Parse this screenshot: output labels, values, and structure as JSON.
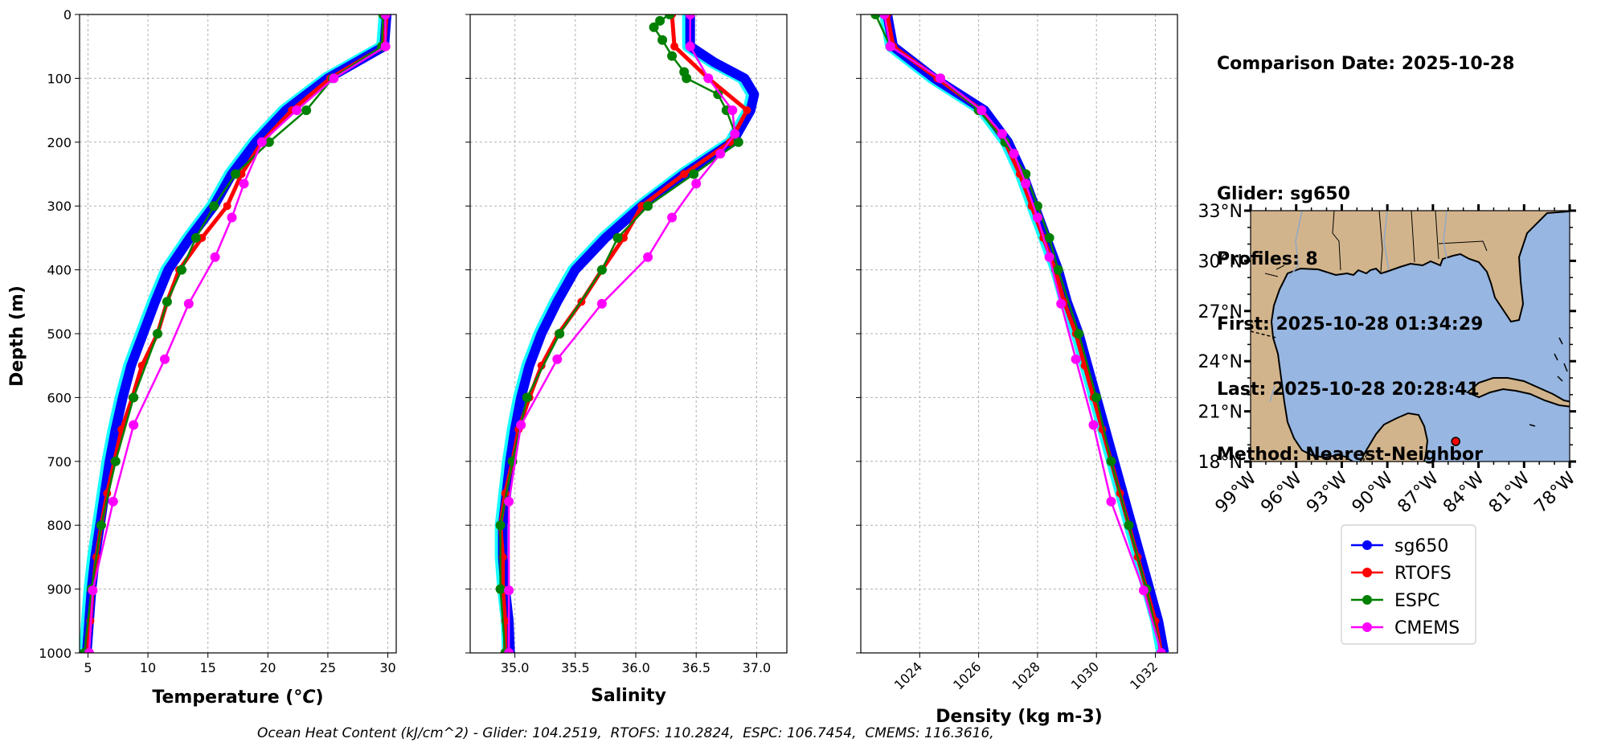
{
  "info": {
    "comparison_date": "Comparison Date: 2025-10-28",
    "glider": "Glider: sg650",
    "profiles": "Profiles: 8",
    "first": "First: 2025-10-28 01:34:29",
    "last": "Last: 2025-10-28 20:28:41",
    "method": "Method: Nearest-Neighbor"
  },
  "footer": "Ocean Heat Content (kJ/cm^2) - Glider: 104.2519,  RTOFS: 110.2824,  ESPC: 106.7454,  CMEMS: 116.3616,",
  "colors": {
    "sg650": "#0000ff",
    "sg650_spread": "#00ffff",
    "RTOFS": "#ff0000",
    "ESPC": "#008000",
    "CMEMS": "#ff00ff",
    "land": "#d2b48c",
    "ocean": "#97b6e1",
    "grid": "#b0b0b0"
  },
  "chart_data": [
    {
      "type": "line",
      "xlabel": "Temperature (°C)",
      "ylabel": "Depth (m)",
      "xlim": [
        4.3,
        30.7
      ],
      "ylim": [
        1000,
        0
      ],
      "x_ticks": [
        5,
        10,
        15,
        20,
        25,
        30
      ],
      "y_ticks": [
        0,
        100,
        200,
        300,
        400,
        500,
        600,
        700,
        800,
        900,
        1000
      ],
      "grid": true,
      "series": [
        {
          "name": "sg650",
          "depth": [
            0,
            50,
            100,
            150,
            200,
            250,
            300,
            350,
            400,
            450,
            500,
            550,
            600,
            650,
            700,
            750,
            800,
            850,
            900,
            950,
            1000
          ],
          "values": [
            29.9,
            29.7,
            25.0,
            21.5,
            19.0,
            17.0,
            15.5,
            13.5,
            11.7,
            10.6,
            9.6,
            8.6,
            7.9,
            7.3,
            6.8,
            6.4,
            6.0,
            5.6,
            5.3,
            5.1,
            4.9
          ]
        },
        {
          "name": "RTOFS",
          "depth": [
            0,
            50,
            100,
            150,
            200,
            250,
            300,
            350,
            400,
            450,
            500,
            550,
            600,
            650,
            700,
            750,
            800,
            850,
            900,
            950,
            1000
          ],
          "values": [
            29.9,
            29.7,
            25.2,
            22.0,
            19.5,
            17.8,
            16.6,
            14.5,
            12.6,
            11.6,
            10.8,
            9.5,
            8.7,
            7.8,
            7.2,
            6.6,
            6.1,
            5.7,
            5.4,
            5.2,
            5.0
          ]
        },
        {
          "name": "ESPC",
          "depth": [
            0,
            50,
            100,
            150,
            200,
            250,
            300,
            350,
            400,
            450,
            500,
            600,
            700,
            800,
            900,
            1000
          ],
          "values": [
            29.6,
            29.5,
            25.4,
            23.2,
            20.1,
            17.3,
            15.5,
            14.0,
            12.8,
            11.6,
            10.8,
            8.8,
            7.3,
            6.1,
            5.3,
            4.7
          ]
        },
        {
          "name": "CMEMS",
          "depth": [
            0,
            50,
            100,
            150,
            200,
            265,
            318,
            380,
            453,
            540,
            643,
            763,
            902,
            1000
          ],
          "values": [
            29.8,
            29.8,
            25.5,
            22.4,
            19.5,
            18.0,
            17.0,
            15.6,
            13.4,
            11.4,
            8.8,
            7.1,
            5.4,
            5.1
          ]
        }
      ]
    },
    {
      "type": "line",
      "xlabel": "Salinity",
      "ylabel": "",
      "xlim": [
        34.63,
        37.25
      ],
      "ylim": [
        1000,
        0
      ],
      "x_ticks": [
        35.0,
        35.5,
        36.0,
        36.5,
        37.0
      ],
      "grid": true,
      "series": [
        {
          "name": "sg650",
          "depth": [
            0,
            50,
            75,
            100,
            125,
            150,
            200,
            250,
            300,
            350,
            400,
            450,
            500,
            550,
            600,
            650,
            700,
            750,
            800,
            850,
            900,
            950,
            1000
          ],
          "values": [
            36.45,
            36.45,
            36.65,
            36.9,
            36.98,
            36.95,
            36.8,
            36.4,
            36.05,
            35.75,
            35.5,
            35.35,
            35.22,
            35.12,
            35.05,
            35.0,
            34.96,
            34.93,
            34.9,
            34.9,
            34.92,
            34.95,
            34.96
          ]
        },
        {
          "name": "RTOFS",
          "depth": [
            0,
            50,
            100,
            150,
            200,
            250,
            300,
            350,
            400,
            450,
            500,
            550,
            600,
            650,
            700,
            750,
            800,
            850,
            900,
            950,
            1000
          ],
          "values": [
            36.3,
            36.32,
            36.6,
            36.92,
            36.78,
            36.4,
            36.05,
            35.9,
            35.72,
            35.55,
            35.36,
            35.22,
            35.12,
            35.03,
            34.98,
            34.92,
            34.88,
            34.9,
            34.9,
            34.92,
            34.92
          ]
        },
        {
          "name": "ESPC",
          "depth": [
            0,
            10,
            20,
            40,
            65,
            90,
            100,
            125,
            150,
            200,
            250,
            300,
            350,
            400,
            500,
            600,
            700,
            800,
            900,
            1000
          ],
          "values": [
            36.28,
            36.2,
            36.15,
            36.22,
            36.3,
            36.4,
            36.42,
            36.68,
            36.75,
            36.85,
            36.48,
            36.1,
            35.85,
            35.72,
            35.37,
            35.1,
            34.98,
            34.88,
            34.88,
            34.92
          ]
        },
        {
          "name": "CMEMS",
          "depth": [
            0,
            50,
            100,
            150,
            187,
            218,
            265,
            318,
            380,
            453,
            540,
            643,
            763,
            902,
            1000
          ],
          "values": [
            36.45,
            36.45,
            36.6,
            36.8,
            36.82,
            36.7,
            36.5,
            36.3,
            36.1,
            35.72,
            35.35,
            35.05,
            34.95,
            34.95,
            34.95
          ]
        }
      ]
    },
    {
      "type": "line",
      "xlabel": "Density (kg m-3)",
      "ylabel": "",
      "xlim": [
        1022.0,
        1032.75
      ],
      "ylim": [
        1000,
        0
      ],
      "x_ticks": [
        1024,
        1026,
        1028,
        1030,
        1032
      ],
      "grid": true,
      "series": [
        {
          "name": "sg650",
          "depth": [
            0,
            50,
            100,
            150,
            200,
            250,
            300,
            350,
            400,
            450,
            500,
            550,
            600,
            650,
            700,
            750,
            800,
            850,
            900,
            950,
            1000
          ],
          "values": [
            1022.9,
            1023.1,
            1024.5,
            1026.2,
            1027.0,
            1027.5,
            1027.9,
            1028.3,
            1028.7,
            1029.0,
            1029.4,
            1029.7,
            1030.0,
            1030.3,
            1030.6,
            1030.9,
            1031.2,
            1031.5,
            1031.8,
            1032.1,
            1032.3
          ]
        },
        {
          "name": "RTOFS",
          "depth": [
            0,
            50,
            100,
            150,
            200,
            250,
            300,
            350,
            400,
            450,
            500,
            550,
            600,
            650,
            700,
            750,
            800,
            850,
            900,
            950,
            1000
          ],
          "values": [
            1022.9,
            1023.1,
            1024.6,
            1026.1,
            1026.9,
            1027.4,
            1027.8,
            1028.2,
            1028.6,
            1028.9,
            1029.3,
            1029.6,
            1029.9,
            1030.2,
            1030.5,
            1030.8,
            1031.1,
            1031.4,
            1031.7,
            1032.0,
            1032.2
          ]
        },
        {
          "name": "ESPC",
          "depth": [
            0,
            50,
            100,
            150,
            200,
            250,
            300,
            350,
            400,
            500,
            600,
            700,
            800,
            900,
            1000
          ],
          "values": [
            1022.5,
            1023.0,
            1024.7,
            1026.0,
            1026.9,
            1027.6,
            1028.0,
            1028.4,
            1028.7,
            1029.4,
            1030.0,
            1030.5,
            1031.1,
            1031.7,
            1032.2
          ]
        },
        {
          "name": "CMEMS",
          "depth": [
            0,
            50,
            100,
            150,
            187,
            218,
            265,
            318,
            380,
            453,
            540,
            643,
            763,
            902,
            1000
          ],
          "values": [
            1022.8,
            1023.0,
            1024.7,
            1026.1,
            1026.8,
            1027.2,
            1027.6,
            1028.0,
            1028.4,
            1028.8,
            1029.3,
            1029.9,
            1030.5,
            1031.6,
            1032.2
          ]
        }
      ]
    },
    {
      "type": "map",
      "lon_range": [
        -99,
        -78
      ],
      "lat_range": [
        18,
        33
      ],
      "x_tick_labels": [
        "99°W",
        "96°W",
        "93°W",
        "90°W",
        "87°W",
        "84°W",
        "81°W",
        "78°W"
      ],
      "y_tick_labels": [
        "18°N",
        "21°N",
        "24°N",
        "27°N",
        "30°N",
        "33°N"
      ],
      "marker": {
        "name": "sg650",
        "lon": -85.5,
        "lat": 19.2
      }
    }
  ],
  "legend": {
    "items": [
      "sg650",
      "RTOFS",
      "ESPC",
      "CMEMS"
    ]
  }
}
